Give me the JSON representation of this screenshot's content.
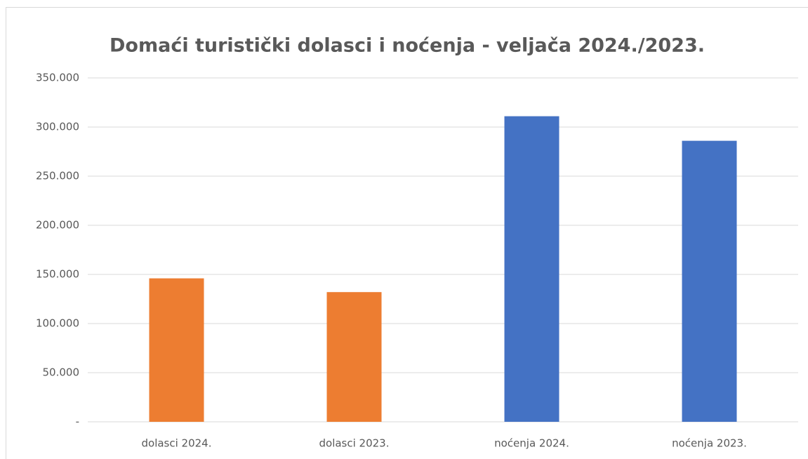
{
  "chart_data": {
    "type": "bar",
    "title": "Domaći turistički dolasci i noćenja - veljača 2024./2023.",
    "categories": [
      "dolasci 2024.",
      "dolasci 2023.",
      "noćenja 2024.",
      "noćenja 2023."
    ],
    "values": [
      146000,
      132000,
      311000,
      286000
    ],
    "colors": [
      "#ed7d31",
      "#ed7d31",
      "#4472c4",
      "#4472c4"
    ],
    "ylim": [
      0,
      350000
    ],
    "yticks": [
      {
        "value": 0,
        "label": "-"
      },
      {
        "value": 50000,
        "label": "50.000"
      },
      {
        "value": 100000,
        "label": "100.000"
      },
      {
        "value": 150000,
        "label": "150.000"
      },
      {
        "value": 200000,
        "label": "200.000"
      },
      {
        "value": 250000,
        "label": "250.000"
      },
      {
        "value": 300000,
        "label": "300.000"
      },
      {
        "value": 350000,
        "label": "350.000"
      }
    ],
    "grid": true
  }
}
